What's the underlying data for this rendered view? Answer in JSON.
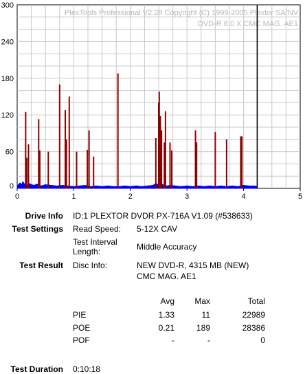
{
  "watermark": {
    "line1": "PlexTools Professional V2.28 Copyright (C) 1999-2005 Plextor SA/NV",
    "line2": "DVD-R   8.0 X   CMC MAG. AE1"
  },
  "chart_data": {
    "type": "bar",
    "xlim": [
      0,
      5
    ],
    "ylim": [
      0,
      300
    ],
    "x_ticks": [
      "0",
      "1",
      "2",
      "3",
      "4",
      "5"
    ],
    "y_ticks": [
      "0",
      "60",
      "120",
      "180",
      "240",
      "300"
    ],
    "grid": true,
    "end_marker_x": 4.24,
    "series": [
      {
        "color": "#8b0000",
        "x": [
          0.15,
          0.17,
          0.2,
          0.38,
          0.4,
          0.55,
          0.75,
          0.85,
          0.87,
          0.92,
          1.05,
          1.24,
          1.27,
          1.35,
          1.78,
          2.45,
          2.5,
          2.51,
          2.53,
          2.55,
          2.6,
          2.62,
          2.7,
          2.73,
          3.15,
          3.17,
          3.5,
          3.7,
          3.95,
          3.97
        ],
        "values": [
          125,
          50,
          72,
          113,
          62,
          60,
          170,
          128,
          80,
          150,
          60,
          63,
          95,
          52,
          188,
          82,
          140,
          158,
          118,
          95,
          75,
          126,
          75,
          62,
          95,
          75,
          92,
          80,
          85,
          85
        ]
      },
      {
        "color": "#0000ff",
        "x": [
          0.0,
          0.05,
          0.08,
          0.1,
          0.13,
          0.18,
          0.22,
          0.25,
          0.3,
          0.35,
          0.42,
          0.5,
          0.6,
          0.7,
          0.8,
          0.9,
          1.0,
          1.1,
          1.2,
          1.3,
          1.4,
          1.5,
          1.6,
          1.7,
          1.8,
          1.9,
          2.0,
          2.1,
          2.2,
          2.3,
          2.4,
          2.45,
          2.5,
          2.55,
          2.6,
          2.65,
          2.7,
          2.8,
          2.9,
          3.0,
          3.1,
          3.2,
          3.3,
          3.4,
          3.5,
          3.6,
          3.7,
          3.8,
          3.9,
          4.0,
          4.1,
          4.2,
          4.24
        ],
        "values": [
          4,
          9,
          6,
          11,
          7,
          5,
          8,
          6,
          5,
          7,
          4,
          6,
          5,
          4,
          5,
          4,
          3,
          4,
          5,
          3,
          4,
          3,
          4,
          3,
          3,
          4,
          3,
          4,
          3,
          4,
          5,
          8,
          6,
          7,
          5,
          4,
          5,
          4,
          3,
          4,
          3,
          4,
          3,
          4,
          3,
          4,
          3,
          4,
          3,
          5,
          4,
          4,
          3
        ]
      }
    ]
  },
  "info": {
    "drive_label": "Drive Info",
    "drive_value": "ID:1 PLEXTOR DVDR PX-716A V1.09 (#538633)",
    "settings_label": "Test Settings",
    "read_speed_label": "Read Speed:",
    "read_speed_value": "5-12X CAV",
    "interval_label_1": "Test Interval",
    "interval_label_2": "Length:",
    "interval_value": "Middle Accuracy",
    "result_label": "Test Result",
    "disc_info_label": "Disc Info:",
    "disc_info_line1": "NEW DVD-R, 4315 MB (NEW)",
    "disc_info_line2": "CMC MAG. AE1",
    "duration_label": "Test Duration",
    "duration_value": "0:10:18"
  },
  "stats": {
    "headers": {
      "avg": "Avg",
      "max": "Max",
      "total": "Total"
    },
    "rows": [
      {
        "name": "PIE",
        "avg": "1.33",
        "max": "11",
        "total": "22989"
      },
      {
        "name": "POE",
        "avg": "0.21",
        "max": "189",
        "total": "28386"
      },
      {
        "name": "POF",
        "avg": "-",
        "max": "-",
        "total": "0"
      }
    ]
  }
}
